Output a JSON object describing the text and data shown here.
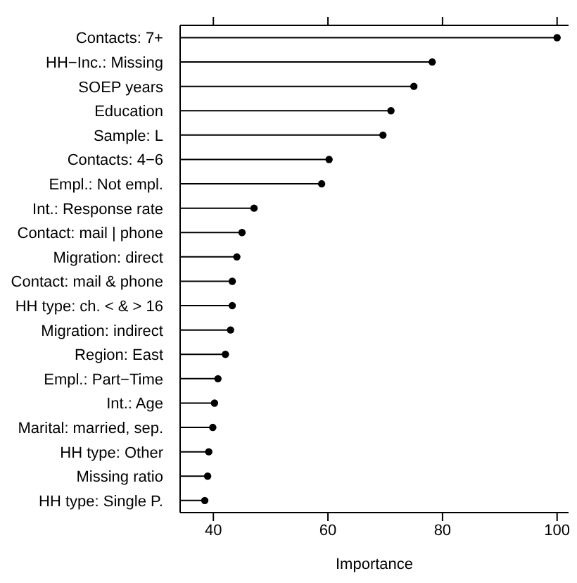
{
  "chart_data": {
    "type": "lollipop",
    "orientation": "horizontal",
    "xlabel": "Importance",
    "categories": [
      "Contacts: 7+",
      "HH−Inc.: Missing",
      "SOEP years",
      "Education",
      "Sample: L",
      "Contacts: 4−6",
      "Empl.: Not empl.",
      "Int.: Response rate",
      "Contact: mail | phone",
      "Migration: direct",
      "Contact: mail & phone",
      "HH type: ch. < & > 16",
      "Migration: indirect",
      "Region: East",
      "Empl.: Part−Time",
      "Int.: Age",
      "Marital: married, sep.",
      "HH type: Other",
      "Missing ratio",
      "HH type: Single P."
    ],
    "values": [
      100,
      78.2,
      75.0,
      71.0,
      69.6,
      60.2,
      58.9,
      47.1,
      45.0,
      44.1,
      43.3,
      43.3,
      43.0,
      42.1,
      40.8,
      40.2,
      39.9,
      39.2,
      39.0,
      38.5
    ],
    "color": "#000000",
    "marker": "circle",
    "xlim": [
      34.2,
      102
    ],
    "xticks": [
      40,
      60,
      80,
      100
    ]
  }
}
